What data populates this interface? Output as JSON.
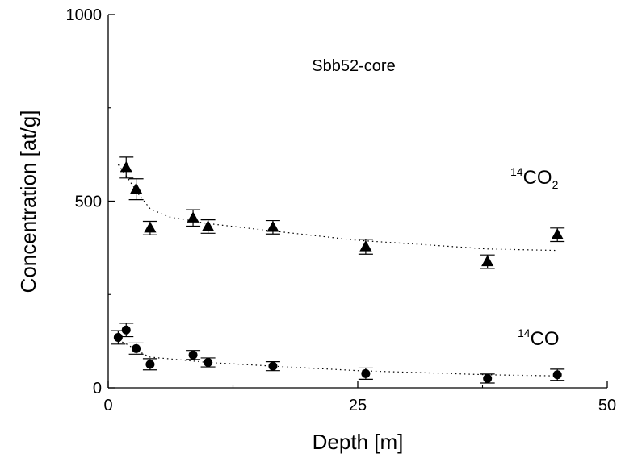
{
  "chart_data": {
    "type": "scatter",
    "title": "Sbb52-core",
    "xlabel": "Depth [m]",
    "ylabel": "Concentration [at/g]",
    "xlim": [
      0,
      50
    ],
    "ylim": [
      0,
      1000
    ],
    "xticks": [
      0,
      25,
      50
    ],
    "yticks": [
      0,
      500,
      1000
    ],
    "grid": false,
    "series": [
      {
        "name": "14CO2",
        "label_sup": "14",
        "label_main": "CO",
        "label_sub": "2",
        "marker": "triangle",
        "points": [
          {
            "x": 1.8,
            "y": 590,
            "err": 28
          },
          {
            "x": 2.8,
            "y": 532,
            "err": 28
          },
          {
            "x": 4.2,
            "y": 428,
            "err": 18
          },
          {
            "x": 8.5,
            "y": 455,
            "err": 22
          },
          {
            "x": 10.0,
            "y": 432,
            "err": 18
          },
          {
            "x": 16.5,
            "y": 430,
            "err": 18
          },
          {
            "x": 25.8,
            "y": 378,
            "err": 20
          },
          {
            "x": 38.0,
            "y": 338,
            "err": 18
          },
          {
            "x": 45.0,
            "y": 410,
            "err": 18
          }
        ],
        "fit": [
          {
            "x": 1.0,
            "y": 598
          },
          {
            "x": 2.0,
            "y": 560
          },
          {
            "x": 3.0,
            "y": 520
          },
          {
            "x": 4.2,
            "y": 480
          },
          {
            "x": 6.0,
            "y": 458
          },
          {
            "x": 10.0,
            "y": 440
          },
          {
            "x": 16.5,
            "y": 420
          },
          {
            "x": 25.0,
            "y": 395
          },
          {
            "x": 32.0,
            "y": 383
          },
          {
            "x": 38.0,
            "y": 372
          },
          {
            "x": 45.0,
            "y": 368
          }
        ]
      },
      {
        "name": "14CO",
        "label_sup": "14",
        "label_main": "CO",
        "label_sub": "",
        "marker": "circle",
        "points": [
          {
            "x": 1.0,
            "y": 135,
            "err": 18
          },
          {
            "x": 1.8,
            "y": 155,
            "err": 18
          },
          {
            "x": 2.8,
            "y": 105,
            "err": 15
          },
          {
            "x": 4.2,
            "y": 63,
            "err": 15
          },
          {
            "x": 8.5,
            "y": 88,
            "err": 12
          },
          {
            "x": 10.0,
            "y": 68,
            "err": 12
          },
          {
            "x": 16.5,
            "y": 58,
            "err": 12
          },
          {
            "x": 25.8,
            "y": 38,
            "err": 15
          },
          {
            "x": 38.0,
            "y": 25,
            "err": 12
          },
          {
            "x": 45.0,
            "y": 35,
            "err": 15
          }
        ],
        "fit": [
          {
            "x": 1.0,
            "y": 128
          },
          {
            "x": 2.0,
            "y": 115
          },
          {
            "x": 3.0,
            "y": 98
          },
          {
            "x": 4.2,
            "y": 82
          },
          {
            "x": 6.0,
            "y": 78
          },
          {
            "x": 10.0,
            "y": 68
          },
          {
            "x": 16.5,
            "y": 58
          },
          {
            "x": 25.0,
            "y": 46
          },
          {
            "x": 38.0,
            "y": 35
          },
          {
            "x": 45.0,
            "y": 32
          }
        ]
      }
    ]
  }
}
